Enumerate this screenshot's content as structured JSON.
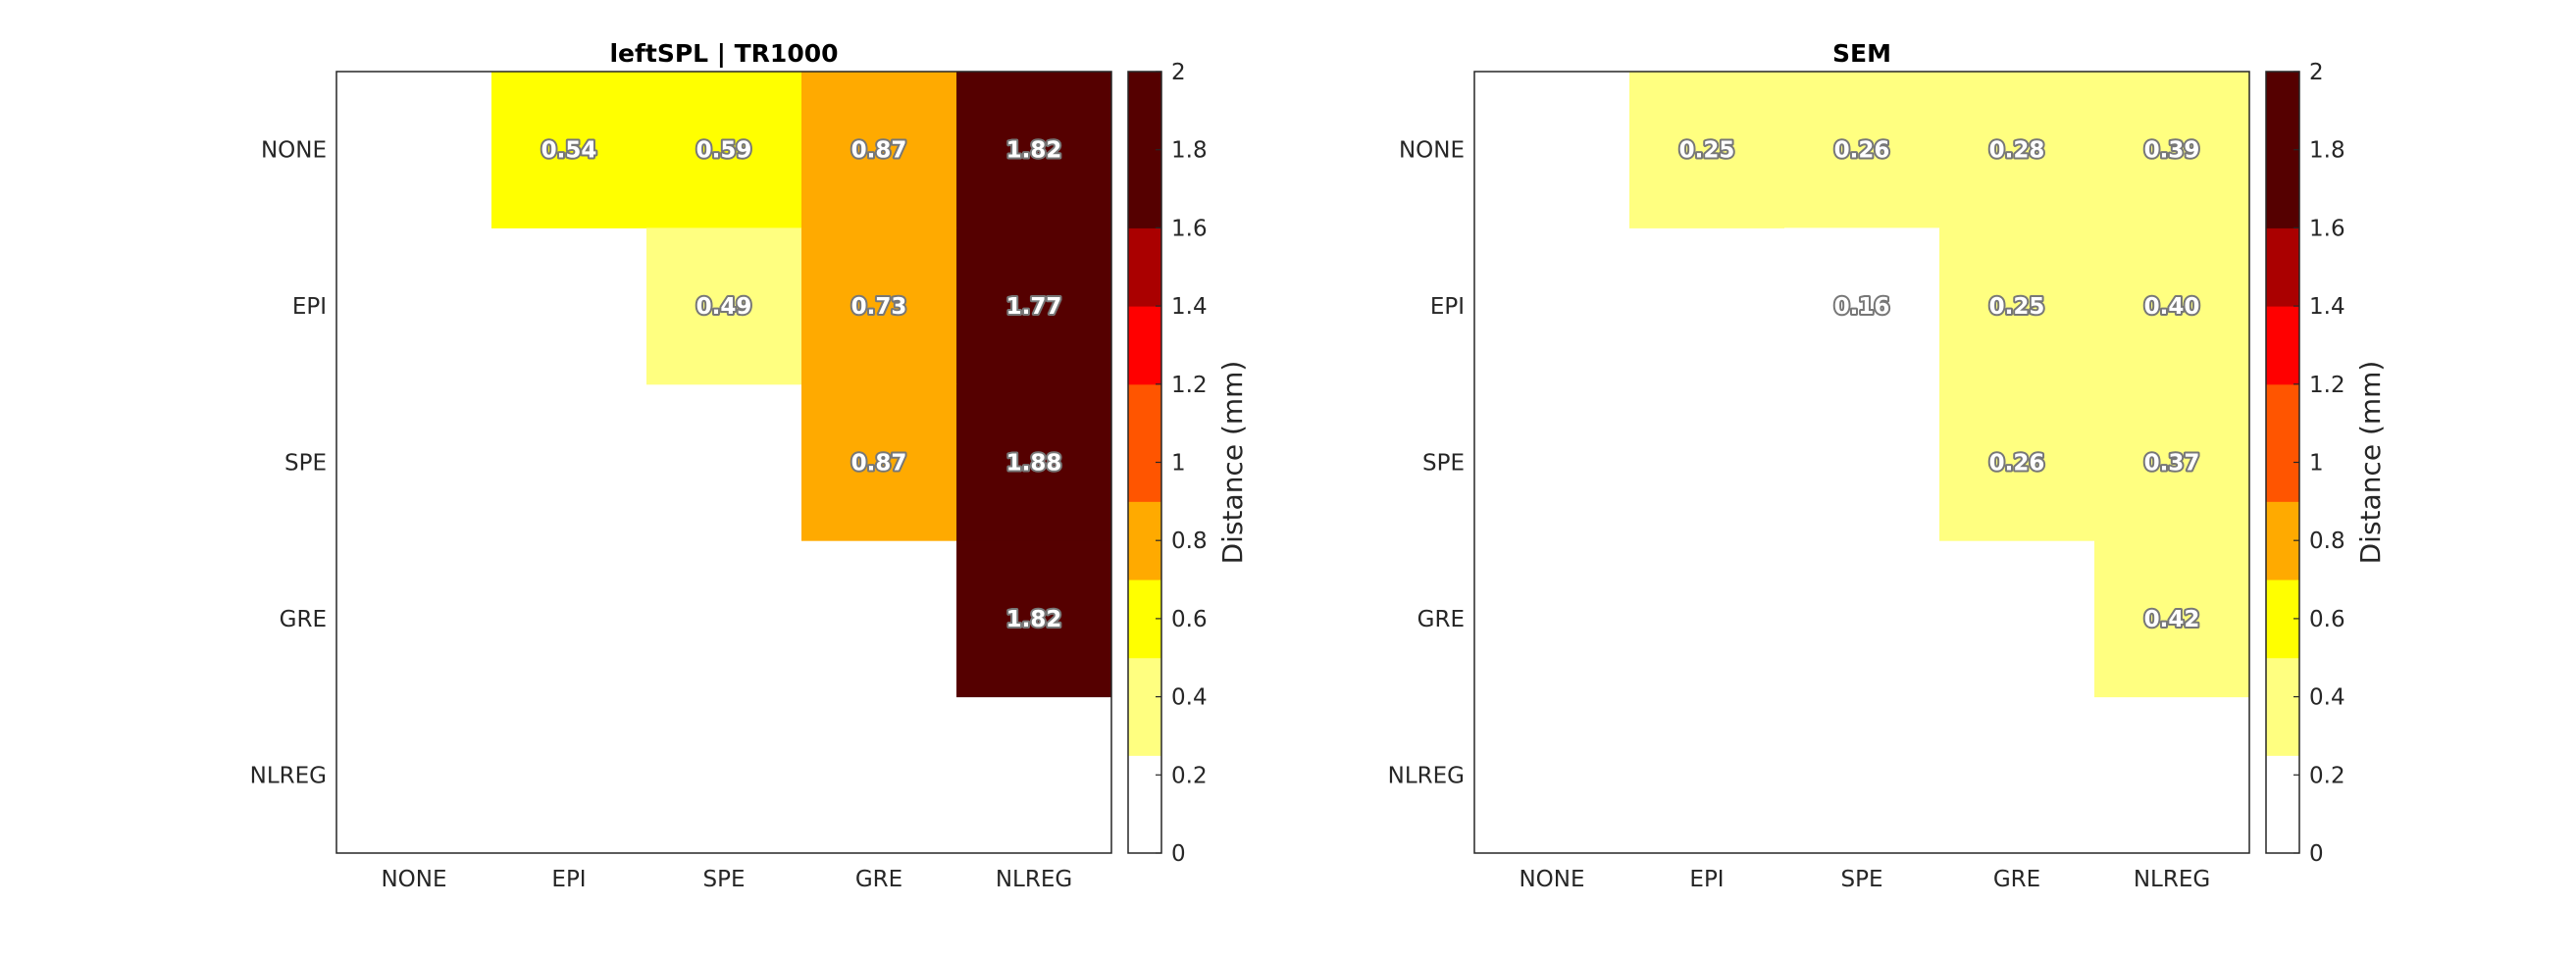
{
  "colors": {
    "colormap": [
      "#ffffff",
      "#ffff80",
      "#ffff00",
      "#ffaa00",
      "#ff5500",
      "#ff0000",
      "#aa0000",
      "#550000"
    ],
    "bin_edges": [
      0,
      0.25,
      0.5,
      0.7,
      0.9,
      1.2,
      1.4,
      1.6,
      2
    ],
    "label_fill": "#ffffff",
    "label_stroke": "#777777",
    "axis": "#262626"
  },
  "chart_data": [
    {
      "type": "heatmap",
      "title": "leftSPL | TR1000",
      "rows": [
        "NONE",
        "EPI",
        "SPE",
        "GRE",
        "NLREG"
      ],
      "cols": [
        "NONE",
        "EPI",
        "SPE",
        "GRE",
        "NLREG"
      ],
      "values": [
        [
          null,
          0.54,
          0.59,
          0.87,
          1.82
        ],
        [
          null,
          null,
          0.49,
          0.73,
          1.77
        ],
        [
          null,
          null,
          null,
          0.87,
          1.88
        ],
        [
          null,
          null,
          null,
          null,
          1.82
        ],
        [
          null,
          null,
          null,
          null,
          null
        ]
      ],
      "labels": [
        [
          null,
          "0.54",
          "0.59",
          "0.87",
          "1.82"
        ],
        [
          null,
          null,
          "0.49",
          "0.73",
          "1.77"
        ],
        [
          null,
          null,
          null,
          "0.87",
          "1.88"
        ],
        [
          null,
          null,
          null,
          null,
          "1.82"
        ],
        [
          null,
          null,
          null,
          null,
          null
        ]
      ],
      "colorbar": {
        "label": "Distance (mm)",
        "range": [
          0,
          2
        ],
        "ticks": [
          "0",
          "0.2",
          "0.4",
          "0.6",
          "0.8",
          "1",
          "1.2",
          "1.4",
          "1.6",
          "1.8",
          "2"
        ]
      }
    },
    {
      "type": "heatmap",
      "title": "SEM",
      "rows": [
        "NONE",
        "EPI",
        "SPE",
        "GRE",
        "NLREG"
      ],
      "cols": [
        "NONE",
        "EPI",
        "SPE",
        "GRE",
        "NLREG"
      ],
      "values": [
        [
          null,
          0.25,
          0.26,
          0.28,
          0.39
        ],
        [
          null,
          null,
          0.16,
          0.25,
          0.4
        ],
        [
          null,
          null,
          null,
          0.26,
          0.37
        ],
        [
          null,
          null,
          null,
          null,
          0.42
        ],
        [
          null,
          null,
          null,
          null,
          null
        ]
      ],
      "labels": [
        [
          null,
          "0.25",
          "0.26",
          "0.28",
          "0.39"
        ],
        [
          null,
          null,
          "0.16",
          "0.25",
          "0.40"
        ],
        [
          null,
          null,
          null,
          "0.26",
          "0.37"
        ],
        [
          null,
          null,
          null,
          null,
          "0.42"
        ],
        [
          null,
          null,
          null,
          null,
          null
        ]
      ],
      "colorbar": {
        "label": "Distance (mm)",
        "range": [
          0,
          2
        ],
        "ticks": [
          "0",
          "0.2",
          "0.4",
          "0.6",
          "0.8",
          "1",
          "1.2",
          "1.4",
          "1.6",
          "1.8",
          "2"
        ]
      }
    }
  ]
}
